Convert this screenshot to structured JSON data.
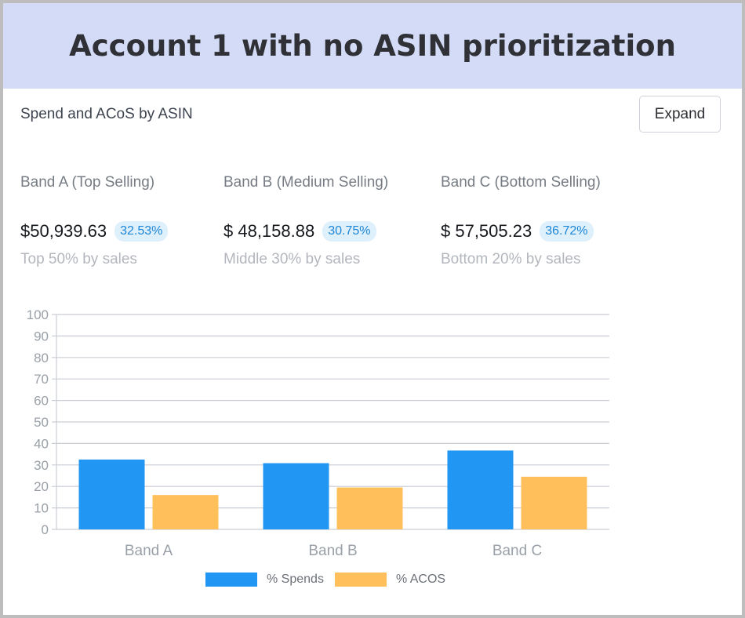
{
  "banner": {
    "title": "Account 1 with no ASIN prioritization"
  },
  "card": {
    "title": "Spend and ACoS by ASIN",
    "expand_label": "Expand"
  },
  "bands": [
    {
      "name": "Band A (Top Selling)",
      "amount": "$50,939.63",
      "percent": "32.53%",
      "subtitle": "Top 50% by sales"
    },
    {
      "name": "Band B (Medium Selling)",
      "amount": "$ 48,158.88",
      "percent": "30.75%",
      "subtitle": "Middle 30% by sales"
    },
    {
      "name": "Band C (Bottom Selling)",
      "amount": "$ 57,505.23",
      "percent": "36.72%",
      "subtitle": "Bottom 20% by sales"
    }
  ],
  "colors": {
    "spends": "#2196f3",
    "acos": "#ffbf5a",
    "grid": "#c9cdd4",
    "axis_text": "#9aa0a8"
  },
  "chart_data": {
    "type": "bar",
    "categories": [
      "Band A",
      "Band B",
      "Band C"
    ],
    "series": [
      {
        "name": "% Spends",
        "values": [
          32.5,
          30.8,
          36.7
        ]
      },
      {
        "name": "% ACOS",
        "values": [
          16,
          19.5,
          24.5
        ]
      }
    ],
    "ylim": [
      0,
      100
    ],
    "yticks": [
      0,
      10,
      20,
      30,
      40,
      50,
      60,
      70,
      80,
      90,
      100
    ],
    "grid": true,
    "legend": "bottom"
  }
}
